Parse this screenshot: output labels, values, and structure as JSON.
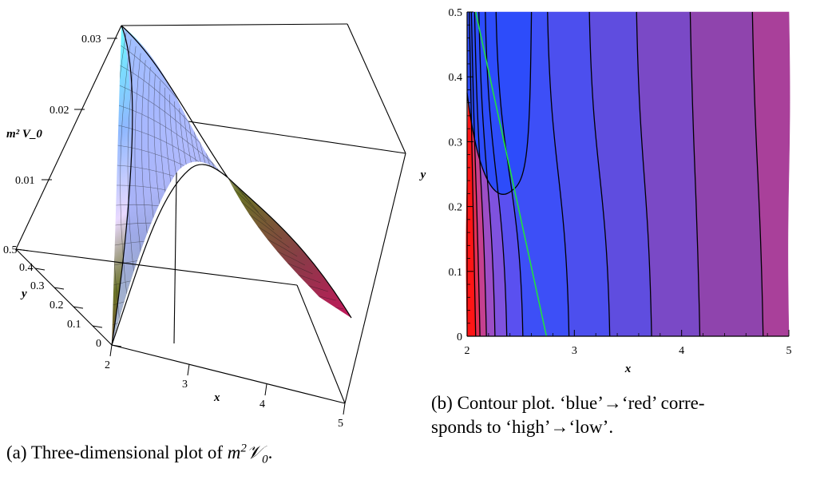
{
  "figures": {
    "a": {
      "caption_prefix": "(a) Three-dimensional plot of",
      "caption_math_base": "m",
      "caption_math_exp": "2",
      "caption_math_sym": "𝒱",
      "caption_math_sub": "0",
      "caption_suffix": "."
    },
    "b": {
      "caption_line1": "(b) Contour plot.   ‘blue’→‘red’ corre-",
      "caption_line2": "sponds to ‘high’→‘low’."
    }
  },
  "chart_data": [
    {
      "type": "surface",
      "zlabel": "m² V_0",
      "xlabel": "x",
      "ylabel": "y",
      "x_ticks": [
        "2",
        "3",
        "4",
        "5"
      ],
      "y_ticks": [
        "0",
        "0.1",
        "0.2",
        "0.3",
        "0.4",
        "0.5"
      ],
      "z_ticks": [
        "0.01",
        "0.02",
        "0.03"
      ],
      "xlim": [
        2,
        5
      ],
      "ylim": [
        0,
        0.5
      ],
      "zlim": [
        0,
        0.033
      ],
      "series": [
        {
          "x": 2.0,
          "y": 0.5,
          "z": 0.033
        },
        {
          "x": 2.4,
          "y": 0.4,
          "z": 0.026
        },
        {
          "x": 2.7,
          "y": 0.25,
          "z": 0.017
        },
        {
          "x": 3.0,
          "y": 0.12,
          "z": 0.011
        },
        {
          "x": 4.0,
          "y": 0.05,
          "z": 0.005
        },
        {
          "x": 5.0,
          "y": 0.0,
          "z": 0.002
        }
      ],
      "colors": [
        "#7fffff",
        "#a9a0ff",
        "#f5e6ff",
        "#7a7a20",
        "#c21a5a"
      ]
    },
    {
      "type": "contour",
      "xlabel": "x",
      "ylabel": "y",
      "x_ticks": [
        "2",
        "3",
        "4",
        "5"
      ],
      "y_ticks": [
        "0",
        "0.1",
        "0.2",
        "0.3",
        "0.4",
        "0.5"
      ],
      "xlim": [
        2,
        5
      ],
      "ylim": [
        0,
        0.5
      ],
      "contour_x_at_y0": [
        2.08,
        2.12,
        2.18,
        2.26,
        2.37,
        2.52,
        2.95,
        3.33,
        3.72,
        4.17,
        4.76
      ],
      "contour_x_at_y05": [
        2.02,
        2.04,
        2.07,
        2.11,
        2.17,
        2.27,
        2.75,
        3.14,
        3.58,
        4.08,
        4.66
      ],
      "closed_contour": {
        "tip_x": 2.42,
        "tip_y": 0.225,
        "x_at_top": [
          2.0,
          2.6
        ]
      },
      "green_line": {
        "x": [
          2.08,
          2.74
        ],
        "y": [
          0.5,
          0.0
        ]
      },
      "band_colors": [
        "#ff1515",
        "#e32e55",
        "#c54090",
        "#9c4ec6",
        "#7f52de",
        "#5a50f0",
        "#3d4ff7",
        "#4c4fee",
        "#5f4ddf",
        "#7a49c6",
        "#8f44ad",
        "#a9409a",
        "#c53b6e"
      ]
    }
  ]
}
